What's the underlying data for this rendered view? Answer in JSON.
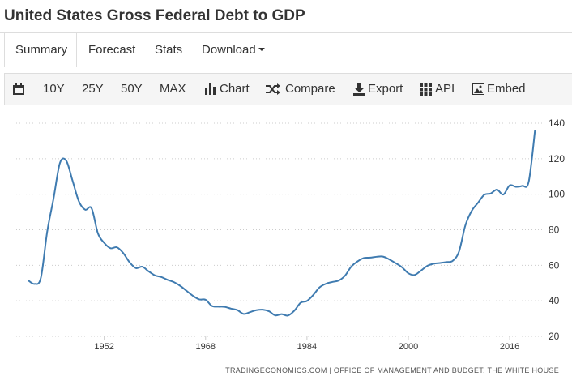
{
  "header": {
    "title": "United States Gross Federal Debt to GDP"
  },
  "tabs": [
    "Summary",
    "Forecast",
    "Stats",
    "Download"
  ],
  "toolbar": [
    "10Y",
    "25Y",
    "50Y",
    "MAX",
    "Chart",
    "Compare",
    "Export",
    "API",
    "Embed"
  ],
  "chart_data": {
    "type": "line",
    "x": [
      1940,
      1941,
      1942,
      1943,
      1944,
      1945,
      1946,
      1947,
      1948,
      1949,
      1950,
      1951,
      1952,
      1953,
      1954,
      1955,
      1956,
      1957,
      1958,
      1959,
      1960,
      1961,
      1962,
      1963,
      1964,
      1965,
      1966,
      1967,
      1968,
      1969,
      1970,
      1971,
      1972,
      1973,
      1974,
      1975,
      1976,
      1977,
      1978,
      1979,
      1980,
      1981,
      1982,
      1983,
      1984,
      1985,
      1986,
      1987,
      1988,
      1989,
      1990,
      1991,
      1992,
      1993,
      1994,
      1995,
      1996,
      1997,
      1998,
      1999,
      2000,
      2001,
      2002,
      2003,
      2004,
      2005,
      2006,
      2007,
      2008,
      2009,
      2010,
      2011,
      2012,
      2013,
      2014,
      2015,
      2016,
      2017,
      2018,
      2019,
      2020
    ],
    "values": [
      51.5,
      49.5,
      53,
      79,
      97.6,
      117.5,
      118.9,
      107.6,
      96,
      91.3,
      92.1,
      78,
      72.6,
      69.6,
      70.1,
      66.9,
      61.7,
      58.4,
      59.2,
      56.6,
      54.3,
      53.4,
      51.8,
      50.5,
      48.4,
      45.6,
      42.8,
      40.8,
      40.6,
      37.1,
      36.7,
      36.6,
      35.6,
      34.8,
      32.6,
      33.6,
      34.7,
      35,
      34.1,
      31.8,
      32.5,
      31.7,
      34.4,
      38.9,
      39.9,
      43.3,
      47.6,
      49.6,
      50.6,
      51.4,
      54.1,
      59.3,
      62.2,
      64.1,
      64.3,
      64.8,
      64.9,
      63.3,
      61.2,
      58.9,
      55.5,
      54.6,
      57,
      59.7,
      60.9,
      61.3,
      61.8,
      62.5,
      67.7,
      82.4,
      90.6,
      95.2,
      99.7,
      100.4,
      102.6,
      99.8,
      105,
      104.2,
      104.7,
      107,
      136
    ],
    "color": "#3f7bb0",
    "xlim": [
      1939,
      2022
    ],
    "xticks": [
      1952,
      1968,
      1984,
      2000,
      2016
    ],
    "ylim": [
      20,
      140
    ],
    "yticks": [
      20,
      40,
      60,
      80,
      100,
      120,
      140
    ],
    "grid": true,
    "source": "TRADINGECONOMICS.COM  |  OFFICE OF MANAGEMENT AND BUDGET, THE WHITE HOUSE"
  }
}
